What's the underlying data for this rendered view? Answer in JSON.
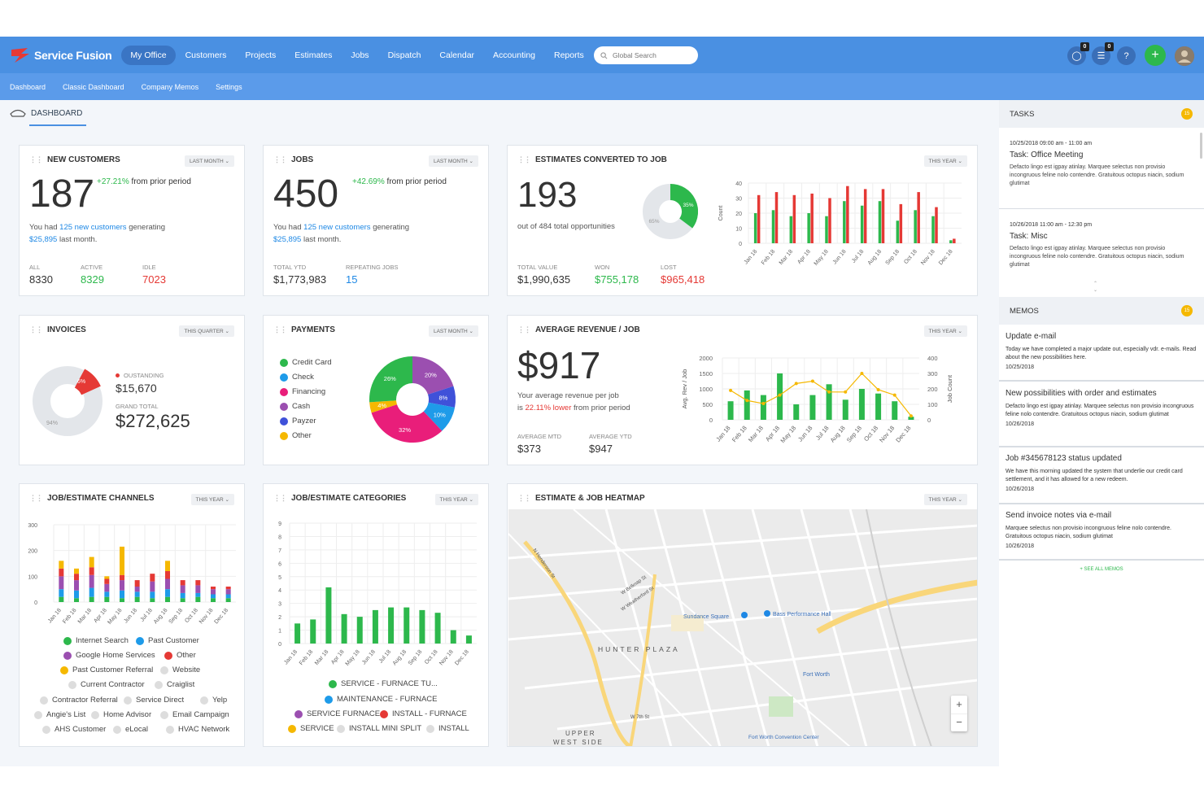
{
  "app": {
    "name": "Service Fusion"
  },
  "nav": {
    "items": [
      "My Office",
      "Customers",
      "Projects",
      "Estimates",
      "Jobs",
      "Dispatch",
      "Calendar",
      "Accounting",
      "Reports"
    ],
    "active": "My Office",
    "search_placeholder": "Global Search",
    "chat_count": "0",
    "notif_count": "0",
    "help": "?",
    "add": "+"
  },
  "subnav": [
    "Dashboard",
    "Classic Dashboard",
    "Company Memos",
    "Settings"
  ],
  "breadcrumb": "DASHBOARD",
  "new_customers": {
    "title": "NEW CUSTOMERS",
    "period": "LAST MONTH",
    "value": "187",
    "change": "+27.21%",
    "change_suffix": "from prior period",
    "desc_pre": "You had",
    "desc_link": "125 new customers",
    "desc_mid": "generating",
    "desc_amount": "$25,895",
    "desc_post": "last month.",
    "stats": [
      {
        "label": "ALL",
        "value": "8330"
      },
      {
        "label": "ACTIVE",
        "value": "8329"
      },
      {
        "label": "IDLE",
        "value": "7023"
      }
    ]
  },
  "jobs": {
    "title": "JOBS",
    "period": "LAST MONTH",
    "value": "450",
    "change": "+42.69%",
    "change_suffix": "from prior period",
    "desc_pre": "You had",
    "desc_link": "125 new customers",
    "desc_mid": "generating",
    "desc_amount": "$25,895",
    "desc_post": "last month.",
    "stats": [
      {
        "label": "TOTAL YTD",
        "value": "$1,773,983"
      },
      {
        "label": "REPEATING JOBS",
        "value": "15"
      }
    ]
  },
  "estimates": {
    "title": "ESTIMATES CONVERTED TO JOB",
    "period": "THIS YEAR",
    "value": "193",
    "desc": "out of 484 total opportunities",
    "donut_won": "35%",
    "donut_rest": "65%",
    "stats": [
      {
        "label": "TOTAL VALUE",
        "value": "$1,990,635"
      },
      {
        "label": "WON",
        "value": "$755,178"
      },
      {
        "label": "LOST",
        "value": "$965,418"
      }
    ],
    "ylabel": "Count"
  },
  "invoices": {
    "title": "INVOICES",
    "period": "THIS QUARTER",
    "outstanding_label": "OUSTANDING",
    "outstanding": "$15,670",
    "grand_label": "GRAND TOTAL",
    "grand": "$272,625",
    "pct_out": "6%",
    "pct_paid": "94%"
  },
  "payments": {
    "title": "PAYMENTS",
    "period": "LAST MONTH",
    "legend": [
      {
        "name": "Credit Card",
        "color": "#2db84c"
      },
      {
        "name": "Check",
        "color": "#1e9be9"
      },
      {
        "name": "Financing",
        "color": "#e91e7a"
      },
      {
        "name": "Cash",
        "color": "#9b4fb0"
      },
      {
        "name": "Payzer",
        "color": "#3f51d9"
      },
      {
        "name": "Other",
        "color": "#f5b800"
      }
    ]
  },
  "avg_revenue": {
    "title": "AVERAGE REVENUE / JOB",
    "period": "THIS YEAR",
    "value": "$917",
    "desc1": "Your average revenue per job",
    "desc2_pre": "is",
    "desc2_pct": "22.11% lower",
    "desc2_post": "from prior period",
    "stats": [
      {
        "label": "AVERAGE MTD",
        "value": "$373"
      },
      {
        "label": "AVERAGE YTD",
        "value": "$947"
      }
    ],
    "ylabel_left": "Avg. Rev / Job",
    "ylabel_right": "Job Count"
  },
  "channels": {
    "title": "JOB/ESTIMATE CHANNELS",
    "period": "THIS YEAR",
    "legend": [
      {
        "name": "Internet Search",
        "color": "#2db84c"
      },
      {
        "name": "Past Customer",
        "color": "#1e9be9"
      },
      {
        "name": "Google Home Services",
        "color": "#9b4fb0"
      },
      {
        "name": "Other",
        "color": "#e53935"
      },
      {
        "name": "Past Customer Referral",
        "color": "#f5b800"
      },
      {
        "name": "Website",
        "color": "#ddd"
      },
      {
        "name": "Current Contractor",
        "color": "#ddd"
      },
      {
        "name": "Craiglist",
        "color": "#ddd"
      },
      {
        "name": "Contractor Referral",
        "color": "#ddd"
      },
      {
        "name": "Service Direct",
        "color": "#ddd"
      },
      {
        "name": "Yelp",
        "color": "#ddd"
      },
      {
        "name": "Angie's List",
        "color": "#ddd"
      },
      {
        "name": "Home Advisor",
        "color": "#ddd"
      },
      {
        "name": "Email Campaign",
        "color": "#ddd"
      },
      {
        "name": "AHS Customer",
        "color": "#ddd"
      },
      {
        "name": "eLocal",
        "color": "#ddd"
      },
      {
        "name": "HVAC Network",
        "color": "#ddd"
      }
    ]
  },
  "categories": {
    "title": "JOB/ESTIMATE CATEGORIES",
    "period": "THIS YEAR",
    "legend": [
      {
        "name": "SERVICE - FURNACE TU...",
        "color": "#2db84c"
      },
      {
        "name": "MAINTENANCE - FURNACE",
        "color": "#1e9be9"
      },
      {
        "name": "SERVICE FURNACE",
        "color": "#9b4fb0"
      },
      {
        "name": "INSTALL - FURNACE",
        "color": "#e53935"
      },
      {
        "name": "SERVICE",
        "color": "#f5b800"
      },
      {
        "name": "INSTALL MINI SPLIT",
        "color": "#ddd"
      },
      {
        "name": "INSTALL",
        "color": "#ddd"
      }
    ]
  },
  "heatmap": {
    "title": "ESTIMATE & JOB HEATMAP",
    "period": "THIS YEAR",
    "labels": [
      "Sundance Square",
      "Bass Performance Hall",
      "HUNTER PLAZA",
      "Fort Worth",
      "UPPER",
      "WEST SIDE",
      "Fort Worth Convention Center",
      "N Henderson St",
      "W Belknap St",
      "W Weatherford St",
      "W 7th St"
    ],
    "zoom_in": "+",
    "zoom_out": "−"
  },
  "tasks": {
    "title": "TASKS",
    "count": "15",
    "items": [
      {
        "time": "10/25/2018 09:00 am - 11:00 am",
        "title": "Task: Office Meeting",
        "desc": "Defacto lingo est igpay atinlay. Marquee selectus non provisio incongruous feline nolo contendre. Gratuitous octopus niacin, sodium glutimat"
      },
      {
        "time": "10/26/2018 11:00 am - 12:30 pm",
        "title": "Task: Misc",
        "desc": "Defacto lingo est igpay atinlay. Marquee selectus non provisio incongruous feline nolo contendre. Gratuitous octopus niacin, sodium glutimat"
      }
    ]
  },
  "memos": {
    "title": "MEMOS",
    "count": "15",
    "see_all": "+ SEE ALL MEMOS",
    "items": [
      {
        "title": "Update e-mail",
        "desc": "Today we have completed a major update out, especially vdr. e-mails. Read about the new possibilities here.",
        "date": "10/25/2018"
      },
      {
        "title": "New possibilities with order and estimates",
        "desc": "Defacto lingo est igpay atinlay. Marquee selectus non provisio incongruous feline nolo contendre. Gratuitous octopus niacin, sodium glutimat",
        "date": "10/26/2018"
      },
      {
        "title": "Job #345678123 status updated",
        "desc": "We have this morning updated the system that underlie our credit card settlement, and it has allowed for a new redeem.",
        "date": "10/26/2018"
      },
      {
        "title": "Send invoice notes via e-mail",
        "desc": "Marquee selectus non provisio incongruous feline nolo contendre. Gratuitous octopus niacin, sodium glutimat",
        "date": "10/26/2018"
      }
    ]
  },
  "chart_data": [
    {
      "type": "bar",
      "title": "ESTIMATES CONVERTED TO JOB",
      "categories": [
        "Jan 18",
        "Feb 18",
        "Mar 18",
        "Apr 18",
        "May 18",
        "Jun 18",
        "Jul 18",
        "Aug 18",
        "Sep 18",
        "Oct 18",
        "Nov 18",
        "Dec 18"
      ],
      "series": [
        {
          "name": "",
          "color": "#2db84c",
          "values": [
            20,
            22,
            18,
            20,
            18,
            28,
            25,
            28,
            15,
            22,
            18,
            2
          ]
        },
        {
          "name": "",
          "color": "#e53935",
          "values": [
            32,
            34,
            32,
            33,
            30,
            38,
            36,
            36,
            26,
            34,
            24,
            3
          ]
        }
      ],
      "ylim": [
        0,
        40
      ],
      "yticks": [
        0,
        10,
        20,
        30,
        40
      ],
      "ylabel": "Count"
    },
    {
      "type": "pie",
      "title": "PAYMENTS",
      "labels": [
        "20%",
        "8%",
        "10%",
        "32%",
        "4%",
        "26%"
      ],
      "values": [
        20,
        8,
        10,
        32,
        4,
        26
      ],
      "colors": [
        "#9b4fb0",
        "#3f51d9",
        "#1e9be9",
        "#e91e7a",
        "#f5b800",
        "#2db84c"
      ]
    },
    {
      "type": "bar",
      "title": "AVERAGE REVENUE / JOB",
      "categories": [
        "Jan 18",
        "Feb 18",
        "Mar 18",
        "Apr 18",
        "May 18",
        "Jun 18",
        "Jul 18",
        "Aug 18",
        "Sep 18",
        "Oct 18",
        "Nov 18",
        "Dec 18"
      ],
      "bars": [
        600,
        950,
        800,
        1500,
        500,
        800,
        1150,
        650,
        1000,
        850,
        600,
        100
      ],
      "line": [
        190,
        125,
        105,
        160,
        235,
        250,
        180,
        180,
        300,
        195,
        160,
        25
      ],
      "ylim_left": [
        0,
        2000
      ],
      "yticks_left": [
        0,
        500,
        1000,
        1500,
        2000
      ],
      "ylim_right": [
        0,
        400
      ],
      "yticks_right": [
        0,
        100,
        200,
        300,
        400
      ],
      "ylabel_left": "Avg. Rev / Job",
      "ylabel_right": "Job Count"
    },
    {
      "type": "bar",
      "title": "JOB/ESTIMATE CHANNELS",
      "stacked": true,
      "categories": [
        "Jan 18",
        "Feb 18",
        "Mar 18",
        "Apr 18",
        "May 18",
        "Jun 18",
        "Jul 18",
        "Aug 18",
        "Sep 18",
        "Oct 18",
        "Nov 18",
        "Dec 18"
      ],
      "series": [
        {
          "name": "Internet Search",
          "color": "#2db84c",
          "values": [
            20,
            15,
            20,
            20,
            15,
            20,
            15,
            20,
            15,
            20,
            15,
            15
          ]
        },
        {
          "name": "Past Customer",
          "color": "#1e9be9",
          "values": [
            30,
            30,
            35,
            20,
            30,
            20,
            25,
            30,
            20,
            15,
            15,
            15
          ]
        },
        {
          "name": "Google Home Services",
          "color": "#9b4fb0",
          "values": [
            50,
            40,
            50,
            30,
            40,
            20,
            40,
            40,
            30,
            30,
            20,
            20
          ]
        },
        {
          "name": "Other",
          "color": "#e53935",
          "values": [
            30,
            25,
            30,
            20,
            20,
            25,
            30,
            30,
            20,
            20,
            10,
            10
          ]
        },
        {
          "name": "Past Customer Referral",
          "color": "#f5b800",
          "values": [
            30,
            20,
            40,
            10,
            110,
            0,
            0,
            40,
            0,
            0,
            0,
            0
          ]
        }
      ],
      "ylim": [
        0,
        300
      ],
      "yticks": [
        0,
        100,
        200,
        300
      ]
    },
    {
      "type": "bar",
      "title": "JOB/ESTIMATE CATEGORIES",
      "categories": [
        "Jan 18",
        "Feb 18",
        "Mar 18",
        "Apr 18",
        "May 18",
        "Jun 18",
        "Jul 18",
        "Aug 18",
        "Sep 18",
        "Oct 18",
        "Nov 18",
        "Dec 18"
      ],
      "values": [
        1.5,
        1.8,
        4.2,
        2.2,
        2,
        2.5,
        2.7,
        2.7,
        2.5,
        2.3,
        1,
        0.6
      ],
      "ylim": [
        0,
        9
      ],
      "yticks": [
        0,
        1,
        2,
        3,
        4,
        5,
        6,
        7,
        8,
        9
      ]
    }
  ]
}
